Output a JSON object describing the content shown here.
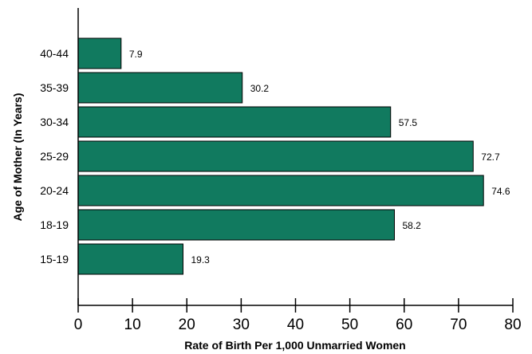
{
  "chart_data": {
    "type": "bar",
    "orientation": "horizontal",
    "categories": [
      "15-19",
      "18-19",
      "20-24",
      "25-29",
      "30-34",
      "35-39",
      "40-44"
    ],
    "values": [
      19.3,
      58.2,
      74.6,
      72.7,
      57.5,
      30.2,
      7.9
    ],
    "value_labels": [
      "19.3",
      "58.2",
      "74.6",
      "72.7",
      "57.5",
      "30.2",
      "7.9"
    ],
    "xlabel": "Rate of Birth Per 1,000 Unmarried Women",
    "ylabel": "Age of Mother (In Years)",
    "xlim": [
      0,
      80
    ],
    "x_ticks": [
      "0",
      "10",
      "20",
      "30",
      "40",
      "50",
      "60",
      "70",
      "80"
    ],
    "grid": false,
    "bar_color": "#117a5f"
  }
}
